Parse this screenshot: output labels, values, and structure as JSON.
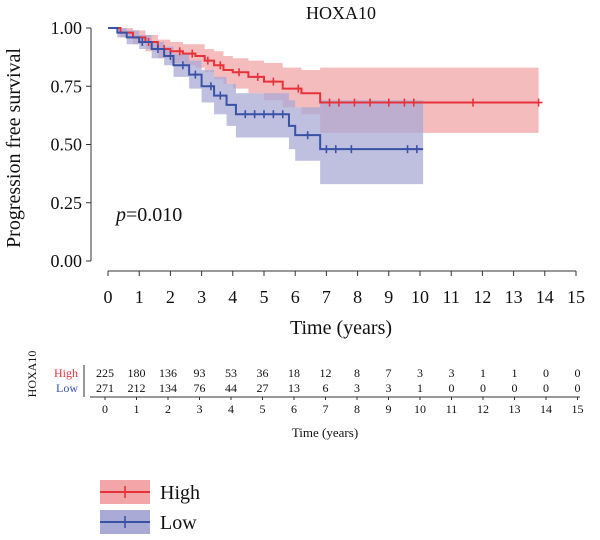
{
  "chart_data": {
    "type": "line",
    "title": "HOXA10",
    "xlabel": "Time (years)",
    "ylabel": "Progression free survival",
    "xlim": [
      0,
      15
    ],
    "ylim": [
      0,
      1
    ],
    "x_ticks": [
      "0",
      "1",
      "2",
      "3",
      "4",
      "5",
      "6",
      "7",
      "8",
      "9",
      "10",
      "11",
      "12",
      "13",
      "14",
      "15"
    ],
    "y_ticks": [
      "0.00",
      "0.25",
      "0.50",
      "0.75",
      "1.00"
    ],
    "grid": false,
    "annotation": {
      "p_symbol": "p",
      "p_value": "=0.010"
    },
    "series": [
      {
        "name": "High",
        "color": "#e8323a",
        "fill": "#f2a6a8",
        "steps": [
          [
            0,
            1.0
          ],
          [
            0.4,
            0.98
          ],
          [
            0.8,
            0.96
          ],
          [
            1.2,
            0.94
          ],
          [
            1.6,
            0.91
          ],
          [
            2.0,
            0.9
          ],
          [
            2.4,
            0.89
          ],
          [
            2.8,
            0.88
          ],
          [
            3.1,
            0.86
          ],
          [
            3.4,
            0.84
          ],
          [
            3.7,
            0.82
          ],
          [
            4.0,
            0.81
          ],
          [
            4.5,
            0.79
          ],
          [
            5.0,
            0.77
          ],
          [
            5.6,
            0.74
          ],
          [
            6.2,
            0.72
          ],
          [
            6.8,
            0.68
          ],
          [
            13.8,
            0.68
          ]
        ],
        "upper": [
          [
            0,
            1.0
          ],
          [
            0.4,
            1.0
          ],
          [
            0.8,
            0.99
          ],
          [
            1.2,
            0.97
          ],
          [
            1.6,
            0.95
          ],
          [
            2.0,
            0.94
          ],
          [
            2.4,
            0.93
          ],
          [
            2.8,
            0.93
          ],
          [
            3.1,
            0.91
          ],
          [
            3.4,
            0.9
          ],
          [
            3.7,
            0.88
          ],
          [
            4.0,
            0.87
          ],
          [
            4.5,
            0.86
          ],
          [
            5.0,
            0.85
          ],
          [
            5.6,
            0.83
          ],
          [
            6.2,
            0.82
          ],
          [
            6.8,
            0.83
          ],
          [
            13.8,
            0.83
          ]
        ],
        "lower": [
          [
            0,
            1.0
          ],
          [
            0.4,
            0.96
          ],
          [
            0.8,
            0.93
          ],
          [
            1.2,
            0.9
          ],
          [
            1.6,
            0.87
          ],
          [
            2.0,
            0.85
          ],
          [
            2.4,
            0.84
          ],
          [
            2.8,
            0.83
          ],
          [
            3.1,
            0.81
          ],
          [
            3.4,
            0.78
          ],
          [
            3.7,
            0.76
          ],
          [
            4.0,
            0.74
          ],
          [
            4.5,
            0.72
          ],
          [
            5.0,
            0.69
          ],
          [
            5.6,
            0.66
          ],
          [
            6.2,
            0.63
          ],
          [
            6.8,
            0.55
          ],
          [
            13.8,
            0.55
          ]
        ],
        "censor_x": [
          1.3,
          1.8,
          2.3,
          2.7,
          3.2,
          3.6,
          4.2,
          4.8,
          5.3,
          6.1,
          7.1,
          7.4,
          7.9,
          8.4,
          9.0,
          9.5,
          9.8,
          11.7,
          13.8
        ]
      },
      {
        "name": "Low",
        "color": "#3a52a6",
        "fill": "#a9aad6",
        "steps": [
          [
            0,
            1.0
          ],
          [
            0.3,
            0.98
          ],
          [
            0.6,
            0.96
          ],
          [
            1.0,
            0.94
          ],
          [
            1.4,
            0.91
          ],
          [
            1.8,
            0.88
          ],
          [
            2.1,
            0.84
          ],
          [
            2.6,
            0.8
          ],
          [
            3.0,
            0.75
          ],
          [
            3.4,
            0.71
          ],
          [
            3.8,
            0.67
          ],
          [
            4.1,
            0.63
          ],
          [
            5.8,
            0.58
          ],
          [
            6.0,
            0.54
          ],
          [
            6.8,
            0.48
          ],
          [
            10.1,
            0.48
          ]
        ],
        "upper": [
          [
            0,
            1.0
          ],
          [
            0.3,
            1.0
          ],
          [
            0.6,
            0.99
          ],
          [
            1.0,
            0.97
          ],
          [
            1.4,
            0.94
          ],
          [
            1.8,
            0.92
          ],
          [
            2.1,
            0.89
          ],
          [
            2.6,
            0.86
          ],
          [
            3.0,
            0.82
          ],
          [
            3.4,
            0.79
          ],
          [
            3.8,
            0.76
          ],
          [
            4.1,
            0.72
          ],
          [
            5.8,
            0.69
          ],
          [
            6.0,
            0.66
          ],
          [
            6.8,
            0.69
          ],
          [
            10.1,
            0.69
          ]
        ],
        "lower": [
          [
            0,
            1.0
          ],
          [
            0.3,
            0.96
          ],
          [
            0.6,
            0.93
          ],
          [
            1.0,
            0.91
          ],
          [
            1.4,
            0.87
          ],
          [
            1.8,
            0.84
          ],
          [
            2.1,
            0.79
          ],
          [
            2.6,
            0.74
          ],
          [
            3.0,
            0.68
          ],
          [
            3.4,
            0.63
          ],
          [
            3.8,
            0.58
          ],
          [
            4.1,
            0.53
          ],
          [
            5.8,
            0.48
          ],
          [
            6.0,
            0.43
          ],
          [
            6.8,
            0.33
          ],
          [
            10.1,
            0.33
          ]
        ],
        "censor_x": [
          1.1,
          1.6,
          2.0,
          2.4,
          2.8,
          3.3,
          3.6,
          4.4,
          4.7,
          5.0,
          5.3,
          5.6,
          6.4,
          7.0,
          7.3,
          7.8,
          9.6,
          9.9
        ]
      }
    ],
    "risk_table": {
      "group_label": "HOXA10",
      "xlabel": "Time (years)",
      "x_ticks": [
        "0",
        "1",
        "2",
        "3",
        "4",
        "5",
        "6",
        "7",
        "8",
        "9",
        "10",
        "11",
        "12",
        "13",
        "14",
        "15"
      ],
      "rows": [
        {
          "name": "High",
          "color": "#e8323a",
          "values": [
            "225",
            "180",
            "136",
            "93",
            "53",
            "36",
            "18",
            "12",
            "8",
            "7",
            "3",
            "3",
            "1",
            "1",
            "0",
            "0"
          ]
        },
        {
          "name": "Low",
          "color": "#3a52a6",
          "values": [
            "271",
            "212",
            "134",
            "76",
            "44",
            "27",
            "13",
            "6",
            "3",
            "3",
            "1",
            "0",
            "0",
            "0",
            "0",
            "0"
          ]
        }
      ]
    },
    "legend": {
      "position": "bottom-left",
      "items": [
        {
          "name": "High",
          "color": "#e8323a",
          "fill": "#f2a6a8"
        },
        {
          "name": "Low",
          "color": "#3a52a6",
          "fill": "#a9aad6"
        }
      ]
    }
  }
}
